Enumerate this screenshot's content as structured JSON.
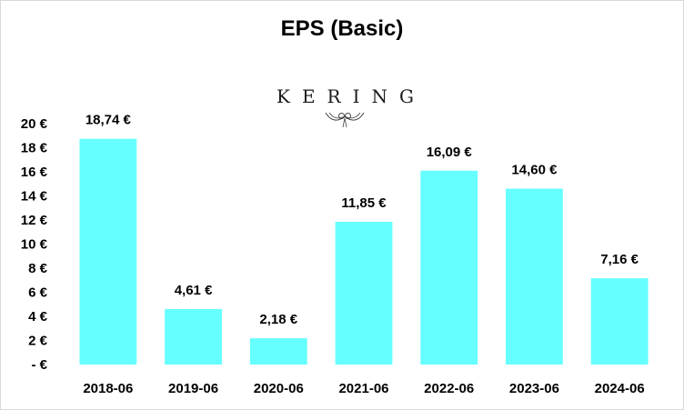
{
  "chart_data": {
    "type": "bar",
    "title": "EPS (Basic)",
    "categories": [
      "2018-06",
      "2019-06",
      "2020-06",
      "2021-06",
      "2022-06",
      "2023-06",
      "2024-06"
    ],
    "values": [
      18.74,
      4.61,
      2.18,
      11.85,
      16.09,
      14.6,
      7.16
    ],
    "data_labels": [
      "18,74 €",
      "4,61 €",
      "2,18 €",
      "11,85 €",
      "16,09 €",
      "14,60 €",
      "7,16 €"
    ],
    "y_tick_labels": [
      "- €",
      "2 €",
      "4 €",
      "6 €",
      "8 €",
      "10 €",
      "12 €",
      "14 €",
      "16 €",
      "18 €",
      "20 €"
    ],
    "y_ticks": [
      0,
      2,
      4,
      6,
      8,
      10,
      12,
      14,
      16,
      18,
      20
    ],
    "ylim": [
      0,
      20
    ],
    "xlabel": "",
    "ylabel": "",
    "grid": false,
    "bar_color": "#66ffff"
  },
  "logo": {
    "text": "KERING",
    "icon": "kering-owl-icon"
  }
}
